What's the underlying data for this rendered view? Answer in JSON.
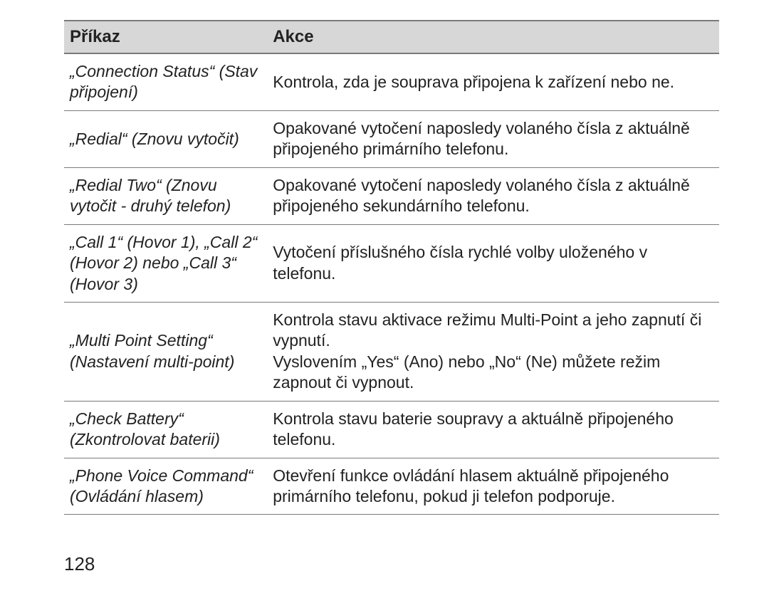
{
  "table": {
    "header_bg": "#d7d7d7",
    "border_color": "#7a7a7a",
    "text_color": "#222222",
    "cmd_header": "Příkaz",
    "act_header": "Akce",
    "rows": [
      {
        "cmd": "„Connection Status“ (Stav připojení)",
        "act": "Kontrola, zda je souprava připojena k zařízení nebo ne."
      },
      {
        "cmd": "„Redial“ (Znovu vytočit)",
        "act": "Opakované vytočení naposledy volaného čísla z aktuálně připojeného primárního telefonu."
      },
      {
        "cmd": "„Redial Two“ (Znovu vytočit - druhý telefon)",
        "act": "Opakované vytočení naposledy volaného čísla z aktuálně připojeného sekundárního telefonu."
      },
      {
        "cmd": "„Call 1“ (Hovor 1), „Call 2“ (Hovor 2) nebo „Call 3“ (Hovor 3)",
        "act": "Vytočení příslušného čísla rychlé volby uloženého v telefonu."
      },
      {
        "cmd": "„Multi Point Setting“ (Nastavení multi-point)",
        "act": "Kontrola stavu aktivace režimu Multi-Point a jeho zapnutí či vypnutí.\nVyslovením „Yes“ (Ano) nebo „No“ (Ne) můžete režim zapnout či vypnout."
      },
      {
        "cmd": "„Check Battery“ (Zkontrolovat baterii)",
        "act": "Kontrola stavu baterie soupravy a aktuálně připojeného telefonu."
      },
      {
        "cmd": "„Phone Voice Command“ (Ovládání hlasem)",
        "act": "Otevření funkce ovládání hlasem aktuálně připojeného primárního telefonu, pokud ji telefon podporuje."
      }
    ]
  },
  "page_number": "128"
}
